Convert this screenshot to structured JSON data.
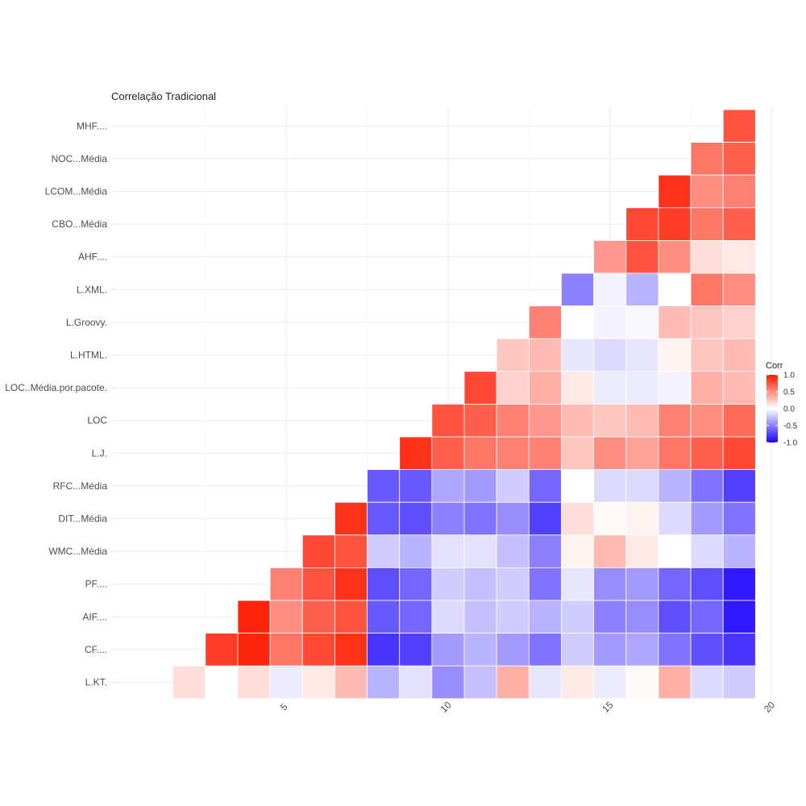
{
  "chart_data": {
    "type": "heatmap",
    "title": "Correlação Tradicional",
    "xlabel": "",
    "ylabel": "",
    "x_ticks": [
      5,
      10,
      15,
      20
    ],
    "x_range": [
      0.5,
      20.5
    ],
    "rows": [
      "MHF....",
      "NOC...Média",
      "LCOM...Média",
      "CBO...Média",
      "AHF....",
      "L.XML.",
      "L.Groovy.",
      "L.HTML.",
      "LOC..Média.por.pacote.",
      "LOC",
      "L.J.",
      "RFC...Média",
      "DIT...Média",
      "WMC...Média",
      "PF....",
      "AIF....",
      "CF....",
      "L.KT."
    ],
    "row_start": [
      19,
      18,
      17,
      16,
      15,
      14,
      13,
      12,
      11,
      10,
      9,
      8,
      7,
      6,
      5,
      4,
      3,
      2
    ],
    "values": [
      [
        0.75
      ],
      [
        0.6,
        0.7
      ],
      [
        0.9,
        0.5,
        0.55
      ],
      [
        0.8,
        0.85,
        0.6,
        0.7
      ],
      [
        0.45,
        0.75,
        0.5,
        0.15,
        0.1
      ],
      [
        -0.5,
        -0.05,
        -0.3,
        0.0,
        0.6,
        0.5
      ],
      [
        0.55,
        0.0,
        -0.05,
        -0.03,
        0.3,
        0.25,
        0.2
      ],
      [
        0.25,
        0.3,
        -0.1,
        -0.15,
        -0.1,
        0.05,
        0.25,
        0.3
      ],
      [
        0.8,
        0.2,
        0.35,
        0.1,
        -0.08,
        -0.08,
        -0.05,
        0.35,
        0.3
      ],
      [
        0.75,
        0.7,
        0.55,
        0.45,
        0.3,
        0.25,
        0.3,
        0.55,
        0.5,
        0.65
      ],
      [
        0.9,
        0.7,
        0.6,
        0.55,
        0.55,
        0.25,
        0.5,
        0.4,
        0.6,
        0.7,
        0.8
      ],
      [
        -0.65,
        -0.65,
        -0.35,
        -0.4,
        -0.2,
        -0.6,
        0.0,
        -0.15,
        -0.15,
        -0.3,
        -0.55,
        -0.75
      ],
      [
        0.9,
        -0.65,
        -0.7,
        -0.5,
        -0.55,
        -0.45,
        -0.75,
        0.15,
        0.03,
        0.05,
        -0.15,
        -0.4,
        -0.55
      ],
      [
        0.8,
        0.75,
        -0.2,
        -0.3,
        -0.12,
        -0.12,
        -0.25,
        -0.5,
        0.05,
        0.3,
        0.1,
        0.0,
        -0.15,
        -0.3
      ],
      [
        0.55,
        0.75,
        0.9,
        -0.7,
        -0.6,
        -0.2,
        -0.25,
        -0.2,
        -0.55,
        -0.1,
        -0.45,
        -0.4,
        -0.6,
        -0.7,
        -0.9
      ],
      [
        0.95,
        0.5,
        0.7,
        0.75,
        -0.65,
        -0.6,
        -0.15,
        -0.25,
        -0.2,
        -0.3,
        -0.2,
        -0.5,
        -0.45,
        -0.7,
        -0.6,
        -0.9
      ],
      [
        0.85,
        0.95,
        0.6,
        0.8,
        0.9,
        -0.8,
        -0.75,
        -0.4,
        -0.3,
        -0.4,
        -0.55,
        -0.2,
        -0.4,
        -0.35,
        -0.55,
        -0.7,
        -0.8
      ],
      [
        0.15,
        0.0,
        0.15,
        -0.08,
        0.1,
        0.3,
        -0.3,
        -0.12,
        -0.45,
        -0.25,
        0.35,
        -0.1,
        0.1,
        -0.08,
        0.02,
        0.35,
        -0.15,
        -0.2
      ]
    ],
    "color_scale": {
      "low": "#1a00ff",
      "mid": "#ffffff",
      "high": "#ff1a00",
      "range": [
        -1,
        1
      ]
    },
    "legend": {
      "title": "Corr",
      "position": "right",
      "ticks": [
        1.0,
        0.5,
        0.0,
        -0.5,
        -1.0
      ],
      "tick_labels": [
        "1.0",
        "0.5",
        "0.0",
        "-0.5",
        "-1.0"
      ]
    },
    "grid": true
  }
}
